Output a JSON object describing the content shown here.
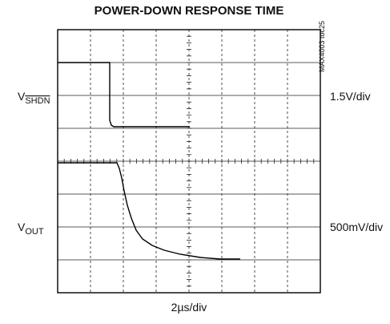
{
  "header": {
    "title": "POWER-DOWN RESPONSE TIME",
    "code": "MAX4003 toc25"
  },
  "channels": [
    {
      "label": {
        "main": "V",
        "sub": "SHDN"
      },
      "scale": "1.5V/div"
    },
    {
      "label": {
        "main": "V",
        "sub": "OUT"
      },
      "scale": "500mV/div"
    }
  ],
  "timebase": "2µs/div"
}
